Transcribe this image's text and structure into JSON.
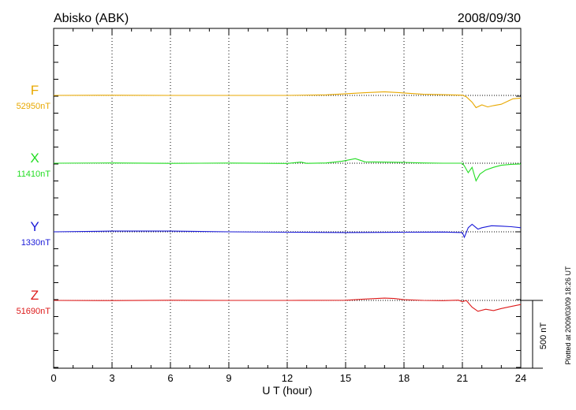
{
  "header": {
    "station": "Abisko (ABK)",
    "date": "2008/09/30"
  },
  "footer": {
    "plotted_note": "Plotted at 2009/03/09 18:26 UT",
    "scale_label": "500 nT"
  },
  "chart_data": {
    "type": "line",
    "title": "Abisko (ABK)",
    "subtitle": "2008/09/30",
    "xlabel": "U T (hour)",
    "xlim": [
      0,
      24
    ],
    "x_ticks": [
      "0",
      "3",
      "6",
      "9",
      "12",
      "15",
      "18",
      "21",
      "24"
    ],
    "scale_bar_nT": 500,
    "grid": "dotted vertical lines every 3 hours",
    "series": [
      {
        "name": "F",
        "baseline_label": "52950nT",
        "color": "#e8a800",
        "x": [
          0,
          3,
          6,
          9,
          12,
          14,
          15,
          16,
          17,
          18,
          19,
          20,
          21,
          21.2,
          21.5,
          21.7,
          22,
          22.3,
          22.6,
          23,
          23.3,
          23.6,
          24
        ],
        "y": [
          52950,
          52951,
          52950,
          52950,
          52950,
          52954,
          52962,
          52970,
          52977,
          52968,
          52958,
          52955,
          52952,
          52940,
          52900,
          52860,
          52880,
          52865,
          52875,
          52885,
          52905,
          52925,
          52930
        ]
      },
      {
        "name": "X",
        "baseline_label": "11410nT",
        "color": "#22dd22",
        "x": [
          0,
          3,
          6,
          9,
          12,
          12.7,
          13,
          14,
          14.8,
          15.5,
          16,
          17,
          18,
          19,
          20,
          21,
          21.1,
          21.3,
          21.5,
          21.7,
          21.9,
          22.2,
          22.6,
          23,
          23.5,
          24
        ],
        "y": [
          11410,
          11412,
          11409,
          11411,
          11408,
          11418,
          11409,
          11412,
          11424,
          11444,
          11420,
          11418,
          11416,
          11412,
          11410,
          11410,
          11390,
          11340,
          11380,
          11280,
          11330,
          11360,
          11380,
          11395,
          11402,
          11405
        ]
      },
      {
        "name": "Y",
        "baseline_label": "1330nT",
        "color": "#1a1ad8",
        "x": [
          0,
          3,
          6,
          9,
          12,
          15,
          18,
          20,
          21,
          21.1,
          21.3,
          21.5,
          21.8,
          22,
          22.5,
          23,
          23.5,
          24
        ],
        "y": [
          1330,
          1335,
          1335,
          1330,
          1327,
          1325,
          1327,
          1328,
          1325,
          1290,
          1360,
          1385,
          1350,
          1360,
          1375,
          1372,
          1368,
          1360
        ]
      },
      {
        "name": "Z",
        "baseline_label": "51690nT",
        "color": "#dd1a1a",
        "x": [
          0,
          3,
          6,
          9,
          12,
          15,
          16,
          17,
          17.5,
          18,
          19,
          20,
          20.8,
          21,
          21.2,
          21.5,
          21.8,
          22.2,
          22.6,
          23,
          23.5,
          24
        ],
        "y": [
          51690,
          51689,
          51691,
          51690,
          51690,
          51691,
          51700,
          51707,
          51704,
          51695,
          51690,
          51688,
          51692,
          51680,
          51690,
          51640,
          51610,
          51625,
          51615,
          51630,
          51645,
          51660
        ]
      }
    ]
  }
}
